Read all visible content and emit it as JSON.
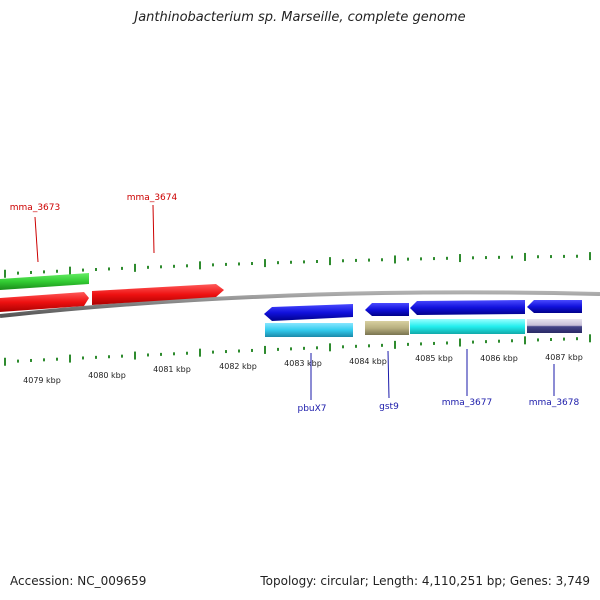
{
  "title": "Janthinobacterium sp. Marseille, complete genome",
  "footer": {
    "accession": "Accession: NC_009659",
    "summary": "Topology: circular; Length: 4,110,251 bp; Genes: 3,749"
  },
  "colors": {
    "backbone": "#808080",
    "tick": "#2e8b2e",
    "forward_label": "#cc0000",
    "reverse_label": "#1a1aaa",
    "green": "#33cc33",
    "red": "#ee1111",
    "blue": "#1111dd",
    "cyan": "#33ccee",
    "cyan_bright": "#22eeee",
    "khaki": "#b8b080",
    "lavender": "#c8c0d8",
    "navy": "#444488"
  },
  "scale": {
    "labels": [
      "4079 kbp",
      "4080 kbp",
      "4081 kbp",
      "4082 kbp",
      "4083 kbp",
      "4084 kbp",
      "4085 kbp",
      "4086 kbp",
      "4087 kbp"
    ]
  },
  "forward_labels": [
    "mma_3673",
    "mma_3674"
  ],
  "reverse_labels": [
    "pbuX7",
    "gst9",
    "mma_3677",
    "mma_3678"
  ]
}
